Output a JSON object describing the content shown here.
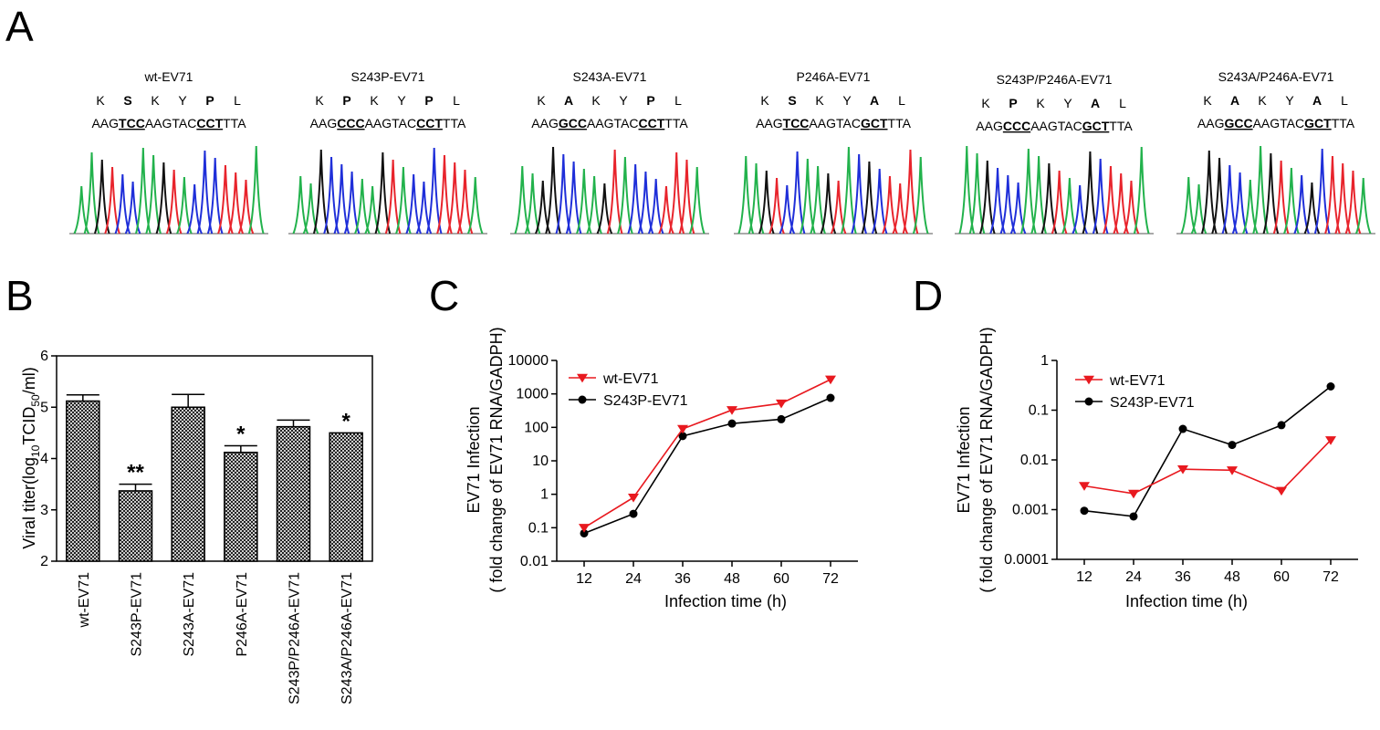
{
  "panels": {
    "A": {
      "letter": "A",
      "traces": [
        {
          "title": "wt-EV71",
          "aa": [
            "K",
            "S",
            "K",
            "Y",
            "P",
            "L"
          ],
          "bold": [
            1,
            4
          ],
          "dna": [
            {
              "t": "AAG",
              "u": false
            },
            {
              "t": "TCC",
              "u": true
            },
            {
              "t": "AAGTAC",
              "u": false
            },
            {
              "t": "CCT",
              "u": true
            },
            {
              "t": "TTA",
              "u": false
            }
          ]
        },
        {
          "title": "S243P-EV71",
          "aa": [
            "K",
            "P",
            "K",
            "Y",
            "P",
            "L"
          ],
          "bold": [
            1,
            4
          ],
          "dna": [
            {
              "t": "AAG",
              "u": false
            },
            {
              "t": "CCC",
              "u": true
            },
            {
              "t": "AAGTAC",
              "u": false
            },
            {
              "t": "CCT",
              "u": true
            },
            {
              "t": "TTA",
              "u": false
            }
          ]
        },
        {
          "title": "S243A-EV71",
          "aa": [
            "K",
            "A",
            "K",
            "Y",
            "P",
            "L"
          ],
          "bold": [
            1,
            4
          ],
          "dna": [
            {
              "t": "AAG",
              "u": false
            },
            {
              "t": "GCC",
              "u": true
            },
            {
              "t": "AAGTAC",
              "u": false
            },
            {
              "t": "CCT",
              "u": true
            },
            {
              "t": "TTA",
              "u": false
            }
          ]
        },
        {
          "title": "P246A-EV71",
          "aa": [
            "K",
            "S",
            "K",
            "Y",
            "A",
            "L"
          ],
          "bold": [
            1,
            4
          ],
          "dna": [
            {
              "t": "AAG",
              "u": false
            },
            {
              "t": "TCC",
              "u": true
            },
            {
              "t": "AAGTAC",
              "u": false
            },
            {
              "t": "GCT",
              "u": true
            },
            {
              "t": "TTA",
              "u": false
            }
          ]
        },
        {
          "title": "S243P/P246A-EV71",
          "aa": [
            "K",
            "P",
            "K",
            "Y",
            "A",
            "L"
          ],
          "bold": [
            1,
            4
          ],
          "dna": [
            {
              "t": "AAG",
              "u": false
            },
            {
              "t": "CCC",
              "u": true
            },
            {
              "t": "AAGTAC",
              "u": false
            },
            {
              "t": "GCT",
              "u": true
            },
            {
              "t": "TTA",
              "u": false
            }
          ]
        },
        {
          "title": "S243A/P246A-EV71",
          "aa": [
            "K",
            "A",
            "K",
            "Y",
            "A",
            "L"
          ],
          "bold": [
            1,
            4
          ],
          "dna": [
            {
              "t": "AAG",
              "u": false
            },
            {
              "t": "GCC",
              "u": true
            },
            {
              "t": "AAGTAC",
              "u": false
            },
            {
              "t": "GCT",
              "u": true
            },
            {
              "t": "TTA",
              "u": false
            }
          ]
        }
      ],
      "trace_colors": {
        "A": "#22b24c",
        "C": "#1f2fd9",
        "G": "#111111",
        "T": "#e8242c"
      }
    },
    "B": {
      "letter": "B",
      "chart_data": {
        "type": "bar",
        "categories": [
          "wt-EV71",
          "S243P-EV71",
          "S243A-EV71",
          "P246A-EV71",
          "S243P/P246A-EV71",
          "S243A/P246A-EV71"
        ],
        "values": [
          5.12,
          3.37,
          5.0,
          4.12,
          4.62,
          4.5
        ],
        "errors": [
          0.12,
          0.13,
          0.25,
          0.13,
          0.13,
          0.0
        ],
        "significance": [
          "",
          "**",
          "",
          "*",
          "",
          "*"
        ],
        "ylabel_main": "Viral titer(log",
        "ylabel_sub": "10",
        "ylabel_rest": "TCID",
        "ylabel_sub2": "50",
        "ylabel_end": "/ml)",
        "ylim": [
          2,
          6
        ],
        "yticks": [
          "2",
          "3",
          "4",
          "5",
          "6"
        ],
        "bar_fill": "crosshatch"
      }
    },
    "C": {
      "letter": "C",
      "chart_data": {
        "type": "line",
        "x": [
          12,
          24,
          36,
          48,
          60,
          72
        ],
        "xticks": [
          "12",
          "24",
          "36",
          "48",
          "60",
          "72"
        ],
        "series": [
          {
            "name": "wt-EV71",
            "values": [
              0.1,
              0.8,
              90,
              330,
              520,
              2700
            ],
            "color": "#e8191f",
            "marker": "triangle-down"
          },
          {
            "name": "S243P-EV71",
            "values": [
              0.068,
              0.26,
              55,
              130,
              175,
              760
            ],
            "color": "#000000",
            "marker": "circle"
          }
        ],
        "xlabel": "Infection time (h)",
        "ylabel_1": "EV71 Infection",
        "ylabel_2": "( fold change of EV71 RNA/GADPH)",
        "yscale": "log",
        "ylim": [
          0.01,
          10000
        ],
        "yticks": [
          "0.01",
          "0.1",
          "1",
          "10",
          "100",
          "1000",
          "10000"
        ],
        "legend_position": "top-left"
      }
    },
    "D": {
      "letter": "D",
      "chart_data": {
        "type": "line",
        "x": [
          12,
          24,
          36,
          48,
          60,
          72
        ],
        "xticks": [
          "12",
          "24",
          "36",
          "48",
          "60",
          "72"
        ],
        "series": [
          {
            "name": "wt-EV71",
            "values": [
              0.003,
              0.0021,
              0.0065,
              0.0062,
              0.0024,
              0.025
            ],
            "color": "#e8191f",
            "marker": "triangle-down"
          },
          {
            "name": "S243P-EV71",
            "values": [
              0.00095,
              0.00073,
              0.042,
              0.02,
              0.05,
              0.3
            ],
            "color": "#000000",
            "marker": "circle"
          }
        ],
        "xlabel": "Infection time (h)",
        "ylabel_1": "EV71 Infection",
        "ylabel_2": "( fold change of EV71 RNA/GADPH)",
        "yscale": "log",
        "ylim": [
          0.0001,
          1
        ],
        "yticks": [
          "0.0001",
          "0.001",
          "0.01",
          "0.1",
          "1"
        ],
        "legend_position": "top-left"
      }
    }
  }
}
